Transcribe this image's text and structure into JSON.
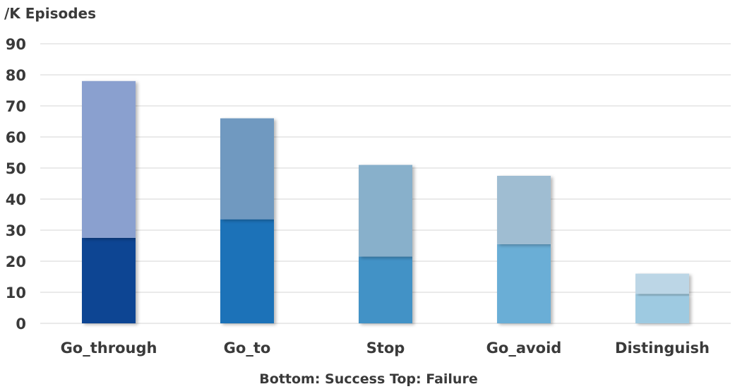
{
  "chart_data": {
    "type": "bar",
    "stacked": true,
    "categories": [
      "Go_through",
      "Go_to",
      "Stop",
      "Go_avoid",
      "Distinguish"
    ],
    "series": [
      {
        "values": [
          27.5,
          33.5,
          21.5,
          25.5,
          9.5
        ],
        "colors": [
          "#0a4593",
          "#1f72b8",
          "#4292c6",
          "#6baed6",
          "#9ecae1"
        ]
      },
      {
        "values": [
          50.5,
          32.5,
          29.5,
          22.0,
          6.5
        ],
        "colors": [
          "#8aa0cf",
          "#7099c0",
          "#88b0cb",
          "#9fbdd2",
          "#bcd6e6"
        ]
      }
    ],
    "ylabel": "/K Episodes",
    "xlabel": "Bottom: Success  Top: Failure",
    "ylim": [
      0,
      90
    ],
    "yticks": [
      0,
      10,
      20,
      30,
      40,
      50,
      60,
      70,
      80,
      90
    ],
    "grid": true,
    "legend": "none"
  }
}
